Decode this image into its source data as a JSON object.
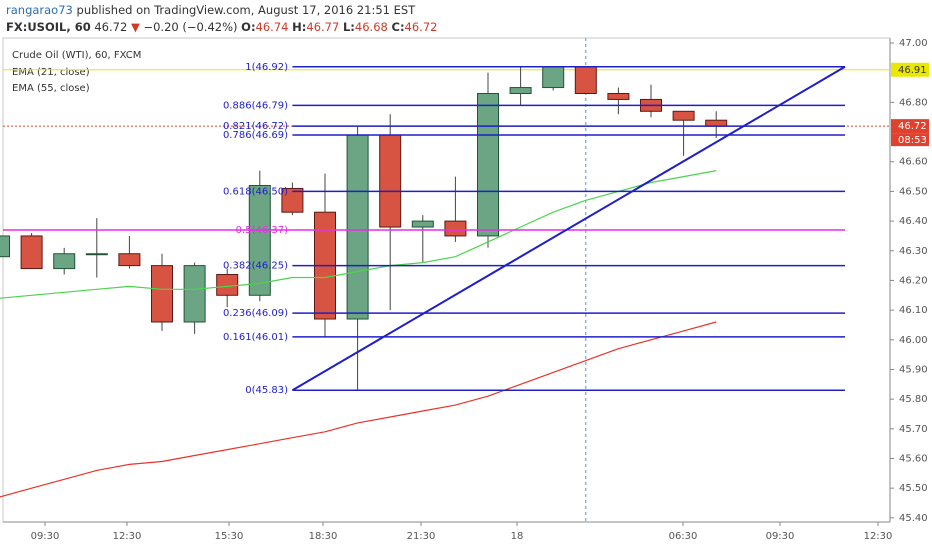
{
  "header": {
    "author": "rangarao73",
    "published": "published on TradingView.com, August 17, 2016 21:51 EST",
    "symbol": "FX:USOIL, 60",
    "last": "46.72",
    "arrow": "▼",
    "change": "−0.20 (−0.42%)",
    "open_label": "O:",
    "open": "46.74",
    "high_label": "H:",
    "high": "46.77",
    "low_label": "L:",
    "low": "46.68",
    "close_label": "C:",
    "close": "46.72"
  },
  "chart_data": {
    "type": "candlestick",
    "title": "Crude Oil (WTI), 60, FXCM",
    "up_color": "#6ba583",
    "down_color": "#d75442",
    "open": [
      46.28,
      46.35,
      46.24,
      46.29,
      46.29,
      46.25,
      46.06,
      46.22,
      46.15,
      46.51,
      46.43,
      46.07,
      46.69,
      46.38,
      46.4,
      46.35,
      46.83,
      46.85,
      46.92,
      46.83,
      46.81,
      46.77,
      46.74
    ],
    "high": [
      46.36,
      46.36,
      46.31,
      46.41,
      46.35,
      46.29,
      46.26,
      46.24,
      46.57,
      46.53,
      46.56,
      46.72,
      46.76,
      46.42,
      46.55,
      46.9,
      46.92,
      46.92,
      46.92,
      46.85,
      46.86,
      46.77,
      46.77
    ],
    "low": [
      46.27,
      46.24,
      46.22,
      46.21,
      46.24,
      46.03,
      46.02,
      46.11,
      46.13,
      46.42,
      46.01,
      45.83,
      46.1,
      46.26,
      46.33,
      46.31,
      46.79,
      46.84,
      46.83,
      46.76,
      46.75,
      46.62,
      46.68
    ],
    "close": [
      46.35,
      46.24,
      46.29,
      46.29,
      46.25,
      46.06,
      46.25,
      46.15,
      46.52,
      46.43,
      46.07,
      46.69,
      46.38,
      46.4,
      46.35,
      46.83,
      46.85,
      46.92,
      46.83,
      46.81,
      46.77,
      46.74,
      46.72
    ],
    "series": [
      {
        "name": "EMA (21, close)",
        "color": "#4cd44c",
        "values": [
          46.14,
          46.15,
          46.16,
          46.17,
          46.18,
          46.17,
          46.17,
          46.18,
          46.19,
          46.21,
          46.21,
          46.23,
          46.25,
          46.26,
          46.28,
          46.33,
          46.38,
          46.43,
          46.47,
          46.5,
          46.53,
          46.55,
          46.57
        ]
      },
      {
        "name": "EMA (55, close)",
        "color": "#e8342a",
        "values": [
          45.47,
          45.5,
          45.53,
          45.56,
          45.58,
          45.59,
          45.61,
          45.63,
          45.65,
          45.67,
          45.69,
          45.72,
          45.74,
          45.76,
          45.78,
          45.81,
          45.85,
          45.89,
          45.93,
          45.97,
          46.0,
          46.03,
          46.06
        ]
      }
    ],
    "fib_levels": [
      {
        "value": 46.92,
        "label": "1(46.92)",
        "color": "#1f1fc8"
      },
      {
        "value": 46.79,
        "label": "0.886(46.79)",
        "color": "#1f1fc8"
      },
      {
        "value": 46.72,
        "label": "0.821(46.72)",
        "color": "#1f1fc8"
      },
      {
        "value": 46.69,
        "label": "0.786(46.69)",
        "color": "#1f1fc8"
      },
      {
        "value": 46.5,
        "label": "0.618(46.50)",
        "color": "#1f1fc8"
      },
      {
        "value": 46.37,
        "label": "0.5(46.37)",
        "color": "#e62ee6"
      },
      {
        "value": 46.25,
        "label": "0.382(46.25)",
        "color": "#1f1fc8"
      },
      {
        "value": 46.09,
        "label": "0.236(46.09)",
        "color": "#1f1fc8"
      },
      {
        "value": 46.01,
        "label": "0.161(46.01)",
        "color": "#1f1fc8"
      },
      {
        "value": 45.83,
        "label": "0(45.83)",
        "color": "#1f1fc8"
      }
    ],
    "trend_line": {
      "values": [
        45.83,
        46.92
      ],
      "color": "#1f1fc8"
    },
    "price_lines": [
      {
        "value": 46.91,
        "label": "46.91",
        "color": "#e8e800",
        "text_color": "#333333"
      },
      {
        "value": 46.72,
        "label": "46.72",
        "color": "#e0402e",
        "text_color": "#ffffff"
      }
    ],
    "countdown": "08:53",
    "x_labels": [
      "09:30",
      "12:30",
      "15:30",
      "18:30",
      "21:30",
      "18",
      "06:30",
      "09:30",
      "12:30"
    ],
    "ylim": [
      45.386,
      47.017
    ],
    "yticks": [
      {
        "value": 47,
        "label": "47.00"
      },
      {
        "value": 46.8,
        "label": "46.80"
      },
      {
        "value": 46.6,
        "label": "46.60"
      },
      {
        "value": 46.5,
        "label": "46.50"
      },
      {
        "value": 46.4,
        "label": "46.40"
      },
      {
        "value": 46.3,
        "label": "46.30"
      },
      {
        "value": 46.2,
        "label": "46.20"
      },
      {
        "value": 46.1,
        "label": "46.10"
      },
      {
        "value": 46,
        "label": "46.00"
      },
      {
        "value": 45.9,
        "label": "45.90"
      },
      {
        "value": 45.8,
        "label": "45.80"
      },
      {
        "value": 45.7,
        "label": "45.70"
      },
      {
        "value": 45.6,
        "label": "45.60"
      },
      {
        "value": 45.5,
        "label": "45.50"
      },
      {
        "value": 45.4,
        "label": "45.40"
      }
    ]
  }
}
